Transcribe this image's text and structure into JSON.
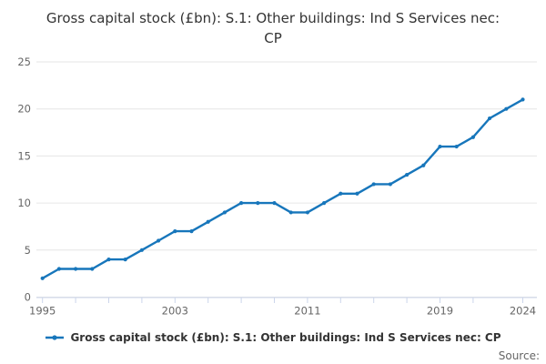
{
  "title": "Gross capital stock (£bn): S.1: Other buildings: Ind S Services nec: CP",
  "legend": {
    "label": "Gross capital stock (£bn): S.1: Other buildings: Ind S Services nec: CP"
  },
  "source_label": "Source:",
  "colors": {
    "series": "#1776bb",
    "grid": "#e6e6e6",
    "axis": "#ccd6eb",
    "axis_label": "#666666",
    "title_text": "#333333"
  },
  "chart_data": {
    "type": "line",
    "title": "Gross capital stock (£bn): S.1: Other buildings: Ind S Services nec: CP",
    "xlabel": "",
    "ylabel": "",
    "grid": true,
    "legend_position": "bottom",
    "x": [
      1995,
      1996,
      1997,
      1998,
      1999,
      2000,
      2001,
      2002,
      2003,
      2004,
      2005,
      2006,
      2007,
      2008,
      2009,
      2010,
      2011,
      2012,
      2013,
      2014,
      2015,
      2016,
      2017,
      2018,
      2019,
      2020,
      2021,
      2022,
      2023,
      2024
    ],
    "series": [
      {
        "name": "Gross capital stock (£bn): S.1: Other buildings: Ind S Services nec: CP",
        "values": [
          2,
          3,
          3,
          3,
          4,
          4,
          5,
          6,
          7,
          7,
          8,
          9,
          10,
          10,
          10,
          9,
          9,
          10,
          11,
          11,
          12,
          12,
          13,
          14,
          16,
          16,
          17,
          19,
          20,
          21
        ]
      }
    ],
    "y_axis": {
      "min": 0,
      "max": 25,
      "ticks": [
        0,
        5,
        10,
        15,
        20,
        25
      ]
    },
    "x_axis": {
      "tick_years": [
        1995,
        1997,
        1999,
        2001,
        2003,
        2005,
        2007,
        2009,
        2011,
        2013,
        2015,
        2017,
        2019,
        2021,
        2024
      ],
      "labeled_ticks": [
        1995,
        2003,
        2011,
        2019,
        2024
      ]
    }
  }
}
